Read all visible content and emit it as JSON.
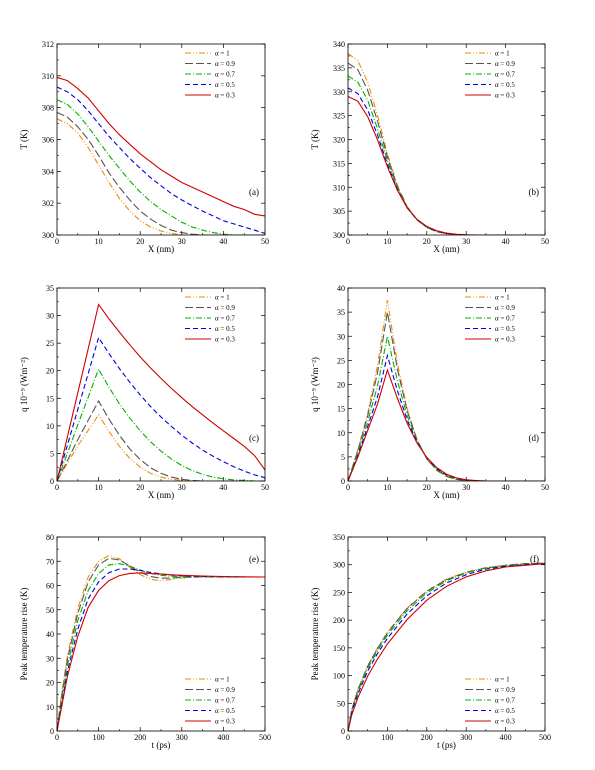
{
  "legend_labels": [
    "α = 1",
    "α = 0.9",
    "α = 0.7",
    "α = 0.5",
    "α = 0.3"
  ],
  "series_styles": [
    {
      "color": "#f08c00",
      "dash": "6 2 1 2 1 2"
    },
    {
      "color": "#555555",
      "dash": "8 3"
    },
    {
      "color": "#00b000",
      "dash": "6 2 1 2"
    },
    {
      "color": "#0000e0",
      "dash": "5 3"
    },
    {
      "color": "#d00000",
      "dash": ""
    }
  ],
  "chart_data": [
    {
      "type": "line",
      "panel_label": "(a)",
      "xlabel": "X (nm)",
      "ylabel": "T (K)",
      "xlim": [
        0,
        50
      ],
      "ylim": [
        300,
        312
      ],
      "xticks": [
        0,
        10,
        20,
        30,
        40,
        50
      ],
      "yticks": [
        300,
        302,
        304,
        306,
        308,
        310,
        312
      ],
      "x": [
        0,
        2.5,
        5,
        7.5,
        10,
        12.5,
        15,
        17.5,
        20,
        22.5,
        25,
        27.5,
        30,
        32.5,
        35,
        37.5,
        40,
        42.5,
        45,
        47.5,
        50
      ],
      "series": [
        {
          "name": "α = 1",
          "values": [
            307.3,
            307.0,
            306.4,
            305.5,
            304.4,
            303.3,
            302.3,
            301.5,
            300.9,
            300.5,
            300.25,
            300.1,
            300.0,
            300.0,
            300.0,
            300.0,
            300.0,
            300.0,
            300.0,
            300.0,
            300.0
          ]
        },
        {
          "name": "α = 0.9",
          "values": [
            307.7,
            307.4,
            306.8,
            306.0,
            305.0,
            303.9,
            303.0,
            302.2,
            301.5,
            301.0,
            300.6,
            300.3,
            300.15,
            300.05,
            300.0,
            300.0,
            300.0,
            300.0,
            300.0,
            300.0,
            300.0
          ]
        },
        {
          "name": "α = 0.7",
          "values": [
            308.5,
            308.2,
            307.6,
            306.8,
            305.9,
            305.0,
            304.2,
            303.4,
            302.7,
            302.1,
            301.6,
            301.2,
            300.8,
            300.5,
            300.3,
            300.15,
            300.05,
            300.0,
            300.0,
            300.0,
            300.0
          ]
        },
        {
          "name": "α = 0.5",
          "values": [
            309.3,
            309.0,
            308.5,
            307.8,
            307.0,
            306.2,
            305.5,
            304.8,
            304.2,
            303.6,
            303.1,
            302.6,
            302.2,
            301.85,
            301.5,
            301.2,
            300.9,
            300.7,
            300.5,
            300.3,
            300.1
          ]
        },
        {
          "name": "α = 0.3",
          "values": [
            309.9,
            309.7,
            309.2,
            308.6,
            307.8,
            307.0,
            306.3,
            305.7,
            305.1,
            304.6,
            304.1,
            303.7,
            303.3,
            303.0,
            302.7,
            302.4,
            302.1,
            301.8,
            301.6,
            301.3,
            301.2
          ]
        }
      ]
    },
    {
      "type": "line",
      "panel_label": "(b)",
      "xlabel": "X (nm)",
      "ylabel": "T (K)",
      "xlim": [
        0,
        50
      ],
      "ylim": [
        300,
        340
      ],
      "xticks": [
        0,
        10,
        20,
        30,
        40,
        50
      ],
      "yticks": [
        300,
        305,
        310,
        315,
        320,
        325,
        330,
        335,
        340
      ],
      "x": [
        0,
        2.5,
        5,
        7.5,
        10,
        12.5,
        15,
        17.5,
        20,
        22.5,
        25,
        27.5,
        30,
        32.5,
        35,
        40,
        45,
        50
      ],
      "series": [
        {
          "name": "α = 1",
          "values": [
            338.0,
            336.5,
            332.0,
            325.0,
            317.0,
            310.5,
            306.0,
            303.2,
            301.6,
            300.7,
            300.3,
            300.1,
            300.0,
            300.0,
            300.0,
            300.0,
            300.0,
            300.0
          ]
        },
        {
          "name": "α = 0.9",
          "values": [
            336.0,
            334.6,
            330.3,
            323.8,
            316.4,
            310.2,
            305.9,
            303.2,
            301.6,
            300.7,
            300.3,
            300.1,
            300.0,
            300.0,
            300.0,
            300.0,
            300.0,
            300.0
          ]
        },
        {
          "name": "α = 0.7",
          "values": [
            333.3,
            332.0,
            328.2,
            322.2,
            315.6,
            309.9,
            305.8,
            303.2,
            301.6,
            300.8,
            300.3,
            300.1,
            300.0,
            300.0,
            300.0,
            300.0,
            300.0,
            300.0
          ]
        },
        {
          "name": "α = 0.5",
          "values": [
            330.8,
            329.6,
            326.2,
            320.9,
            314.8,
            309.6,
            305.7,
            303.2,
            301.7,
            300.8,
            300.35,
            300.1,
            300.0,
            300.0,
            300.0,
            300.0,
            300.0,
            300.0
          ]
        },
        {
          "name": "α = 0.3",
          "values": [
            329.0,
            328.0,
            324.8,
            319.9,
            314.3,
            309.4,
            305.7,
            303.3,
            301.8,
            300.9,
            300.4,
            300.15,
            300.05,
            300.0,
            300.0,
            300.0,
            300.0,
            300.0
          ]
        }
      ]
    },
    {
      "type": "line",
      "panel_label": "(c)",
      "xlabel": "X (nm)",
      "ylabel": "q 10⁻⁹ (Wm⁻²)",
      "xlim": [
        0,
        50
      ],
      "ylim": [
        0,
        35
      ],
      "xticks": [
        0,
        10,
        20,
        30,
        40,
        50
      ],
      "yticks": [
        0,
        5,
        10,
        15,
        20,
        25,
        30,
        35
      ],
      "x": [
        0,
        2.5,
        5,
        7.5,
        10,
        12.5,
        15,
        17.5,
        20,
        22.5,
        25,
        27.5,
        30,
        32.5,
        35,
        37.5,
        40,
        42.5,
        45,
        47.5,
        50
      ],
      "series": [
        {
          "name": "α = 1",
          "values": [
            0,
            3.2,
            6.4,
            9.2,
            12.0,
            9.0,
            6.3,
            4.1,
            2.5,
            1.4,
            0.7,
            0.3,
            0.1,
            0,
            0,
            0,
            0,
            0,
            0,
            0,
            0
          ]
        },
        {
          "name": "α = 0.9",
          "values": [
            0,
            3.7,
            7.5,
            11.0,
            14.5,
            11.2,
            8.3,
            5.8,
            3.9,
            2.4,
            1.4,
            0.7,
            0.3,
            0.1,
            0,
            0,
            0,
            0,
            0,
            0,
            0
          ]
        },
        {
          "name": "α = 0.7",
          "values": [
            0,
            5.0,
            10.2,
            15.2,
            20.3,
            17.0,
            14.0,
            11.4,
            9.1,
            7.1,
            5.4,
            4.0,
            2.8,
            1.9,
            1.2,
            0.7,
            0.4,
            0.2,
            0.1,
            0,
            0
          ]
        },
        {
          "name": "α = 0.5",
          "values": [
            0,
            6.5,
            13.0,
            19.5,
            26.0,
            23.1,
            20.4,
            17.9,
            15.6,
            13.5,
            11.6,
            9.9,
            8.3,
            6.9,
            5.6,
            4.5,
            3.5,
            2.6,
            1.8,
            1.1,
            0.6
          ]
        },
        {
          "name": "α = 0.3",
          "values": [
            0,
            8.0,
            16.0,
            24.0,
            32.0,
            29.4,
            27.0,
            24.7,
            22.5,
            20.5,
            18.6,
            16.8,
            15.1,
            13.5,
            12.0,
            10.5,
            9.1,
            7.7,
            6.3,
            4.6,
            2.0
          ]
        }
      ]
    },
    {
      "type": "line",
      "panel_label": "(d)",
      "xlabel": "X (nm)",
      "ylabel": "q 10⁻⁹ (Wm⁻²)",
      "xlim": [
        0,
        50
      ],
      "ylim": [
        0,
        40
      ],
      "xticks": [
        0,
        10,
        20,
        30,
        40,
        50
      ],
      "yticks": [
        0,
        5,
        10,
        15,
        20,
        25,
        30,
        35,
        40
      ],
      "x": [
        0,
        2.5,
        5,
        7.5,
        10,
        12.5,
        15,
        17.5,
        20,
        22.5,
        25,
        27.5,
        30,
        32.5,
        35,
        40,
        45,
        50
      ],
      "series": [
        {
          "name": "α = 1",
          "values": [
            0,
            6.5,
            14.0,
            24.0,
            37.5,
            24.5,
            15.0,
            8.6,
            4.5,
            2.2,
            0.9,
            0.3,
            0.05,
            0,
            0,
            0,
            0,
            0
          ]
        },
        {
          "name": "α = 0.9",
          "values": [
            0,
            6.3,
            13.5,
            22.5,
            35.0,
            23.3,
            14.6,
            8.6,
            4.6,
            2.3,
            1.0,
            0.35,
            0.1,
            0,
            0,
            0,
            0,
            0
          ]
        },
        {
          "name": "α = 0.7",
          "values": [
            0,
            5.8,
            12.3,
            19.8,
            30.0,
            20.8,
            13.6,
            8.4,
            4.7,
            2.4,
            1.1,
            0.45,
            0.15,
            0.05,
            0,
            0,
            0,
            0
          ]
        },
        {
          "name": "α = 0.5",
          "values": [
            0,
            5.3,
            11.3,
            17.5,
            26.0,
            18.8,
            12.7,
            8.1,
            4.8,
            2.6,
            1.25,
            0.55,
            0.2,
            0.05,
            0,
            0,
            0,
            0
          ]
        },
        {
          "name": "α = 0.3",
          "values": [
            0,
            5.0,
            10.5,
            16.0,
            23.0,
            17.2,
            12.0,
            7.9,
            4.9,
            2.8,
            1.4,
            0.65,
            0.25,
            0.1,
            0,
            0,
            0,
            0
          ]
        }
      ]
    },
    {
      "type": "line",
      "panel_label": "(e)",
      "xlabel": "t (ps)",
      "ylabel": "Peak temperature rise (K)",
      "xlim": [
        0,
        500
      ],
      "ylim": [
        0,
        80
      ],
      "xticks": [
        0,
        100,
        200,
        300,
        400,
        500
      ],
      "yticks": [
        0,
        10,
        20,
        30,
        40,
        50,
        60,
        70,
        80
      ],
      "x": [
        0,
        10,
        25,
        50,
        75,
        100,
        125,
        150,
        175,
        200,
        225,
        250,
        275,
        300,
        350,
        400,
        450,
        500
      ],
      "series": [
        {
          "name": "α = 1",
          "values": [
            0,
            14.0,
            31.0,
            50.5,
            63.5,
            70.0,
            72.4,
            71.0,
            67.5,
            64.5,
            62.5,
            62.0,
            62.5,
            63.1,
            63.6,
            63.5,
            63.5,
            63.5
          ]
        },
        {
          "name": "α = 0.9",
          "values": [
            0,
            13.0,
            29.5,
            48.5,
            61.5,
            68.5,
            71.2,
            70.5,
            68.0,
            65.5,
            63.7,
            63.0,
            63.1,
            63.4,
            63.6,
            63.5,
            63.5,
            63.5
          ]
        },
        {
          "name": "α = 0.7",
          "values": [
            0,
            11.5,
            27.0,
            45.5,
            58.0,
            65.0,
            68.5,
            69.0,
            68.0,
            66.4,
            65.0,
            64.2,
            63.8,
            63.7,
            63.6,
            63.5,
            63.5,
            63.5
          ]
        },
        {
          "name": "α = 0.5",
          "values": [
            0,
            10.0,
            24.5,
            42.0,
            54.5,
            61.5,
            65.3,
            66.8,
            66.8,
            66.2,
            65.4,
            64.8,
            64.3,
            64.0,
            63.7,
            63.6,
            63.5,
            63.5
          ]
        },
        {
          "name": "α = 0.3",
          "values": [
            0,
            9.0,
            22.5,
            39.0,
            51.0,
            58.0,
            62.0,
            64.1,
            65.0,
            65.2,
            65.0,
            64.7,
            64.4,
            64.2,
            63.9,
            63.7,
            63.6,
            63.5
          ]
        }
      ]
    },
    {
      "type": "line",
      "panel_label": "(f)",
      "xlabel": "t (ps)",
      "ylabel": "Peak temperature rise (K)",
      "xlim": [
        0,
        500
      ],
      "ylim": [
        0,
        350
      ],
      "xticks": [
        0,
        100,
        200,
        300,
        400,
        500
      ],
      "yticks": [
        0,
        50,
        100,
        150,
        200,
        250,
        300,
        350
      ],
      "x": [
        0,
        10,
        25,
        50,
        75,
        100,
        150,
        200,
        250,
        300,
        350,
        400,
        450,
        500
      ],
      "series": [
        {
          "name": "α = 1",
          "values": [
            0,
            40,
            75,
            118,
            150,
            178,
            222,
            253,
            274,
            287,
            295,
            299,
            302,
            303
          ]
        },
        {
          "name": "α = 0.9",
          "values": [
            0,
            39,
            74,
            117,
            149,
            177,
            221,
            252,
            273,
            286,
            294,
            299,
            302,
            303
          ]
        },
        {
          "name": "α = 0.7",
          "values": [
            0,
            37,
            71,
            113,
            145,
            173,
            217,
            249,
            271,
            285,
            294,
            298,
            301,
            303
          ]
        },
        {
          "name": "α = 0.5",
          "values": [
            0,
            35,
            67,
            108,
            140,
            167,
            211,
            244,
            267,
            282,
            292,
            297,
            300,
            302
          ]
        },
        {
          "name": "α = 0.3",
          "values": [
            0,
            30,
            60,
            99,
            130,
            157,
            201,
            236,
            261,
            278,
            289,
            296,
            299,
            302
          ]
        }
      ]
    }
  ]
}
